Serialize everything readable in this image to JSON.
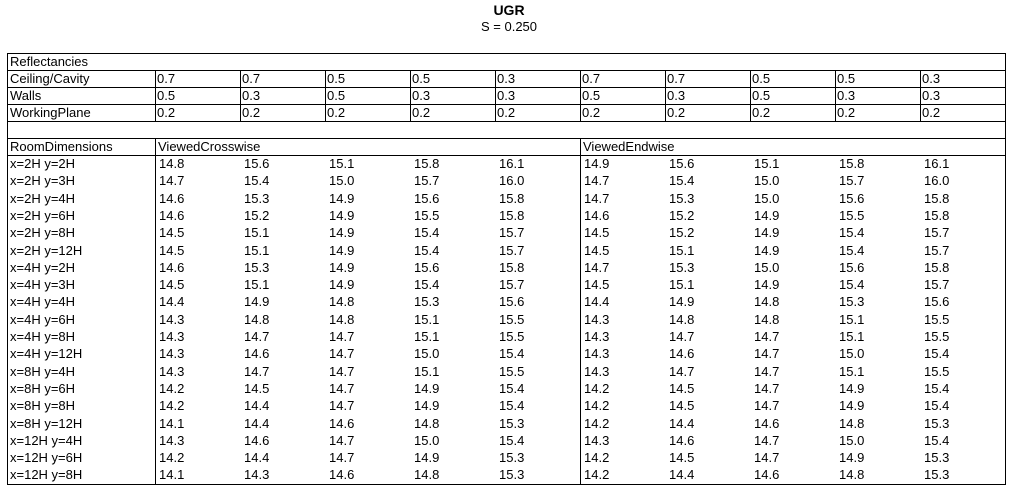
{
  "title": "UGR",
  "subtitle": "S = 0.250",
  "reflectancies": {
    "title": "Reflectancies",
    "rows": [
      {
        "label": "Ceiling/Cavity",
        "values": [
          "0.7",
          "0.7",
          "0.5",
          "0.5",
          "0.3",
          "0.7",
          "0.7",
          "0.5",
          "0.5",
          "0.3"
        ]
      },
      {
        "label": "Walls",
        "values": [
          "0.5",
          "0.3",
          "0.5",
          "0.3",
          "0.3",
          "0.5",
          "0.3",
          "0.5",
          "0.3",
          "0.3"
        ]
      },
      {
        "label": "WorkingPlane",
        "values": [
          "0.2",
          "0.2",
          "0.2",
          "0.2",
          "0.2",
          "0.2",
          "0.2",
          "0.2",
          "0.2",
          "0.2"
        ]
      }
    ]
  },
  "table": {
    "header": [
      "RoomDimensions",
      "ViewedCrosswise",
      "ViewedEndwise"
    ],
    "rows": [
      {
        "label": "x=2H y=2H",
        "values": [
          "14.8",
          "15.6",
          "15.1",
          "15.8",
          "16.1",
          "14.9",
          "15.6",
          "15.1",
          "15.8",
          "16.1"
        ]
      },
      {
        "label": "x=2H y=3H",
        "values": [
          "14.7",
          "15.4",
          "15.0",
          "15.7",
          "16.0",
          "14.7",
          "15.4",
          "15.0",
          "15.7",
          "16.0"
        ]
      },
      {
        "label": "x=2H y=4H",
        "values": [
          "14.6",
          "15.3",
          "14.9",
          "15.6",
          "15.8",
          "14.7",
          "15.3",
          "15.0",
          "15.6",
          "15.8"
        ]
      },
      {
        "label": "x=2H y=6H",
        "values": [
          "14.6",
          "15.2",
          "14.9",
          "15.5",
          "15.8",
          "14.6",
          "15.2",
          "14.9",
          "15.5",
          "15.8"
        ]
      },
      {
        "label": "x=2H y=8H",
        "values": [
          "14.5",
          "15.1",
          "14.9",
          "15.4",
          "15.7",
          "14.5",
          "15.2",
          "14.9",
          "15.4",
          "15.7"
        ]
      },
      {
        "label": "x=2H y=12H",
        "values": [
          "14.5",
          "15.1",
          "14.9",
          "15.4",
          "15.7",
          "14.5",
          "15.1",
          "14.9",
          "15.4",
          "15.7"
        ]
      },
      {
        "label": "x=4H y=2H",
        "values": [
          "14.6",
          "15.3",
          "14.9",
          "15.6",
          "15.8",
          "14.7",
          "15.3",
          "15.0",
          "15.6",
          "15.8"
        ]
      },
      {
        "label": "x=4H y=3H",
        "values": [
          "14.5",
          "15.1",
          "14.9",
          "15.4",
          "15.7",
          "14.5",
          "15.1",
          "14.9",
          "15.4",
          "15.7"
        ]
      },
      {
        "label": "x=4H y=4H",
        "values": [
          "14.4",
          "14.9",
          "14.8",
          "15.3",
          "15.6",
          "14.4",
          "14.9",
          "14.8",
          "15.3",
          "15.6"
        ]
      },
      {
        "label": "x=4H y=6H",
        "values": [
          "14.3",
          "14.8",
          "14.8",
          "15.1",
          "15.5",
          "14.3",
          "14.8",
          "14.8",
          "15.1",
          "15.5"
        ]
      },
      {
        "label": "x=4H y=8H",
        "values": [
          "14.3",
          "14.7",
          "14.7",
          "15.1",
          "15.5",
          "14.3",
          "14.7",
          "14.7",
          "15.1",
          "15.5"
        ]
      },
      {
        "label": "x=4H y=12H",
        "values": [
          "14.3",
          "14.6",
          "14.7",
          "15.0",
          "15.4",
          "14.3",
          "14.6",
          "14.7",
          "15.0",
          "15.4"
        ]
      },
      {
        "label": "x=8H y=4H",
        "values": [
          "14.3",
          "14.7",
          "14.7",
          "15.1",
          "15.5",
          "14.3",
          "14.7",
          "14.7",
          "15.1",
          "15.5"
        ]
      },
      {
        "label": "x=8H y=6H",
        "values": [
          "14.2",
          "14.5",
          "14.7",
          "14.9",
          "15.4",
          "14.2",
          "14.5",
          "14.7",
          "14.9",
          "15.4"
        ]
      },
      {
        "label": "x=8H y=8H",
        "values": [
          "14.2",
          "14.4",
          "14.7",
          "14.9",
          "15.4",
          "14.2",
          "14.5",
          "14.7",
          "14.9",
          "15.4"
        ]
      },
      {
        "label": "x=8H y=12H",
        "values": [
          "14.1",
          "14.4",
          "14.6",
          "14.8",
          "15.3",
          "14.2",
          "14.4",
          "14.6",
          "14.8",
          "15.3"
        ]
      },
      {
        "label": "x=12H y=4H",
        "values": [
          "14.3",
          "14.6",
          "14.7",
          "15.0",
          "15.4",
          "14.3",
          "14.6",
          "14.7",
          "15.0",
          "15.4"
        ]
      },
      {
        "label": "x=12H y=6H",
        "values": [
          "14.2",
          "14.4",
          "14.7",
          "14.9",
          "15.3",
          "14.2",
          "14.5",
          "14.7",
          "14.9",
          "15.3"
        ]
      },
      {
        "label": "x=12H y=8H",
        "values": [
          "14.1",
          "14.3",
          "14.6",
          "14.8",
          "15.3",
          "14.2",
          "14.4",
          "14.6",
          "14.8",
          "15.3"
        ]
      }
    ]
  }
}
